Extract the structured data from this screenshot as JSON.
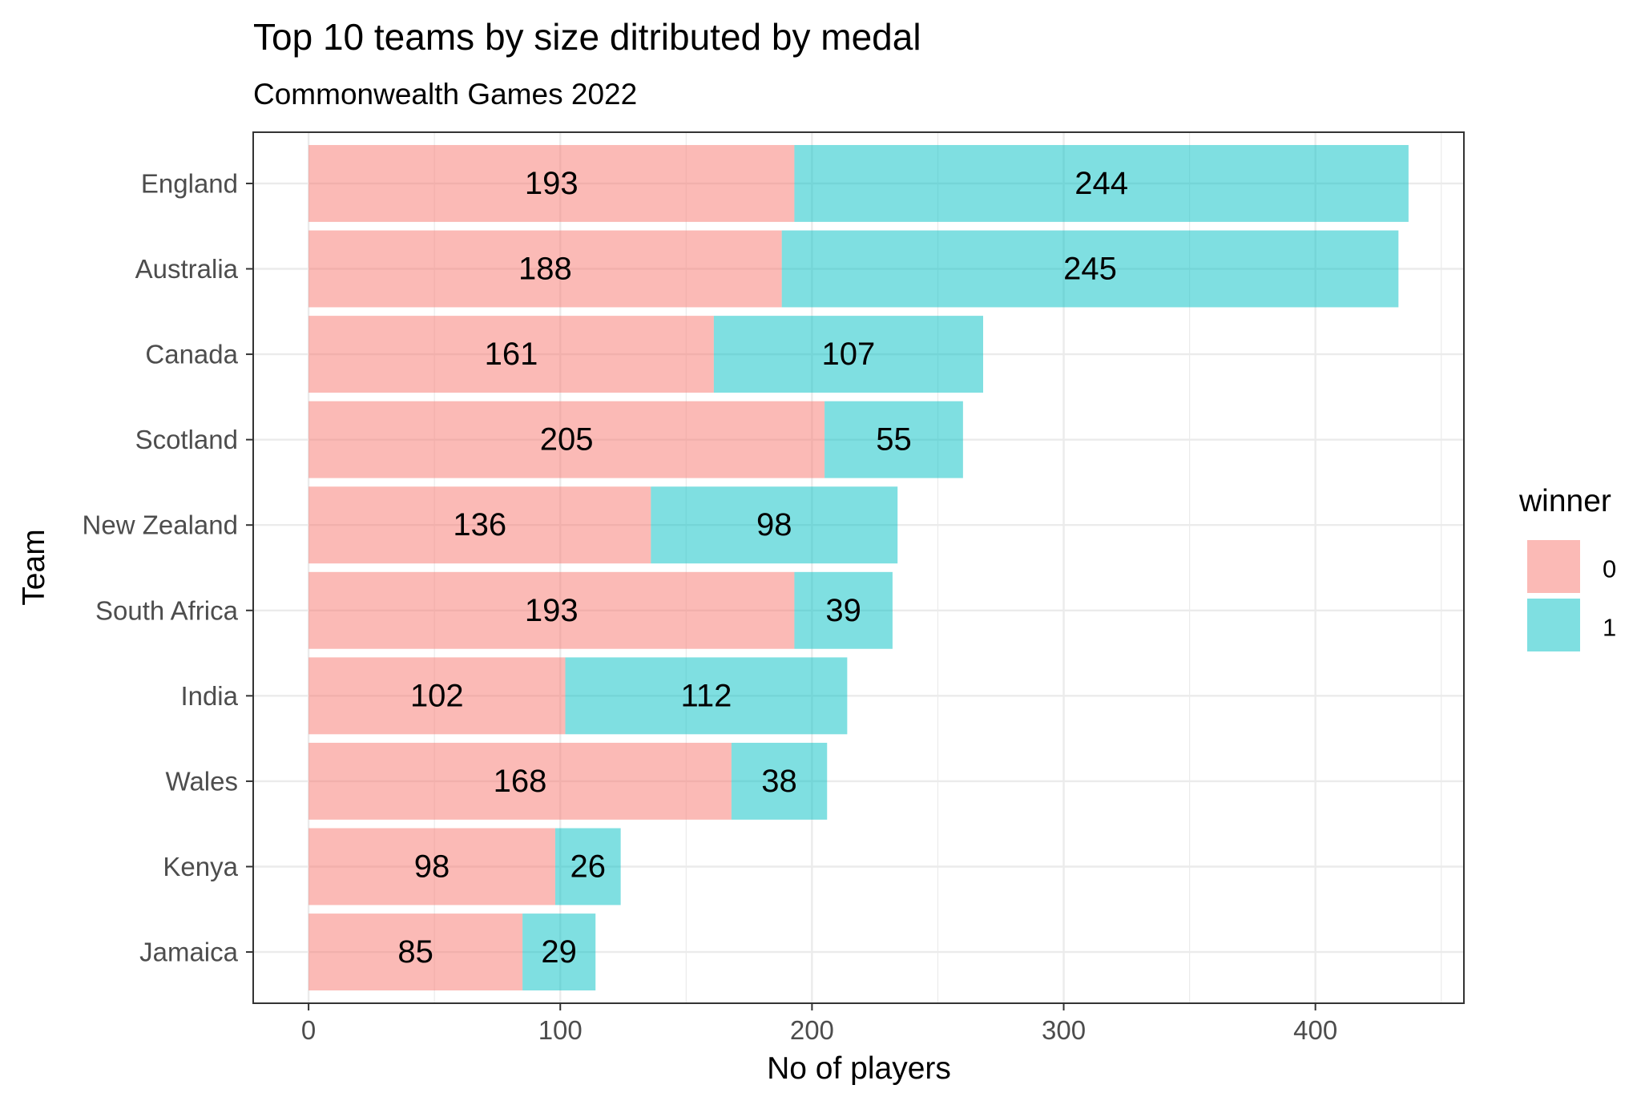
{
  "chart_data": {
    "type": "bar",
    "orientation": "horizontal",
    "stacked": true,
    "title": "Top 10 teams by size ditributed by medal",
    "subtitle": "Commonwealth Games 2022",
    "xlabel": "No of players",
    "ylabel": "Team",
    "categories": [
      "England",
      "Australia",
      "Canada",
      "Scotland",
      "New Zealand",
      "South Africa",
      "India",
      "Wales",
      "Kenya",
      "Jamaica"
    ],
    "series": [
      {
        "name": "0",
        "color": "#F8766D",
        "values": [
          193,
          188,
          161,
          205,
          136,
          193,
          102,
          168,
          98,
          85
        ]
      },
      {
        "name": "1",
        "color": "#00BFC4",
        "values": [
          244,
          245,
          107,
          55,
          98,
          39,
          112,
          38,
          26,
          29
        ]
      }
    ],
    "xlim": [
      -22,
      459
    ],
    "x_ticks": [
      0,
      100,
      200,
      300,
      400
    ],
    "x_tick_labels": [
      "0",
      "100",
      "200",
      "300",
      "400"
    ],
    "x_minor_ticks": [
      50,
      150,
      250,
      350,
      450
    ],
    "grid": true,
    "bar_opacity": 0.5,
    "legend": {
      "title": "winner",
      "position": "right"
    }
  }
}
